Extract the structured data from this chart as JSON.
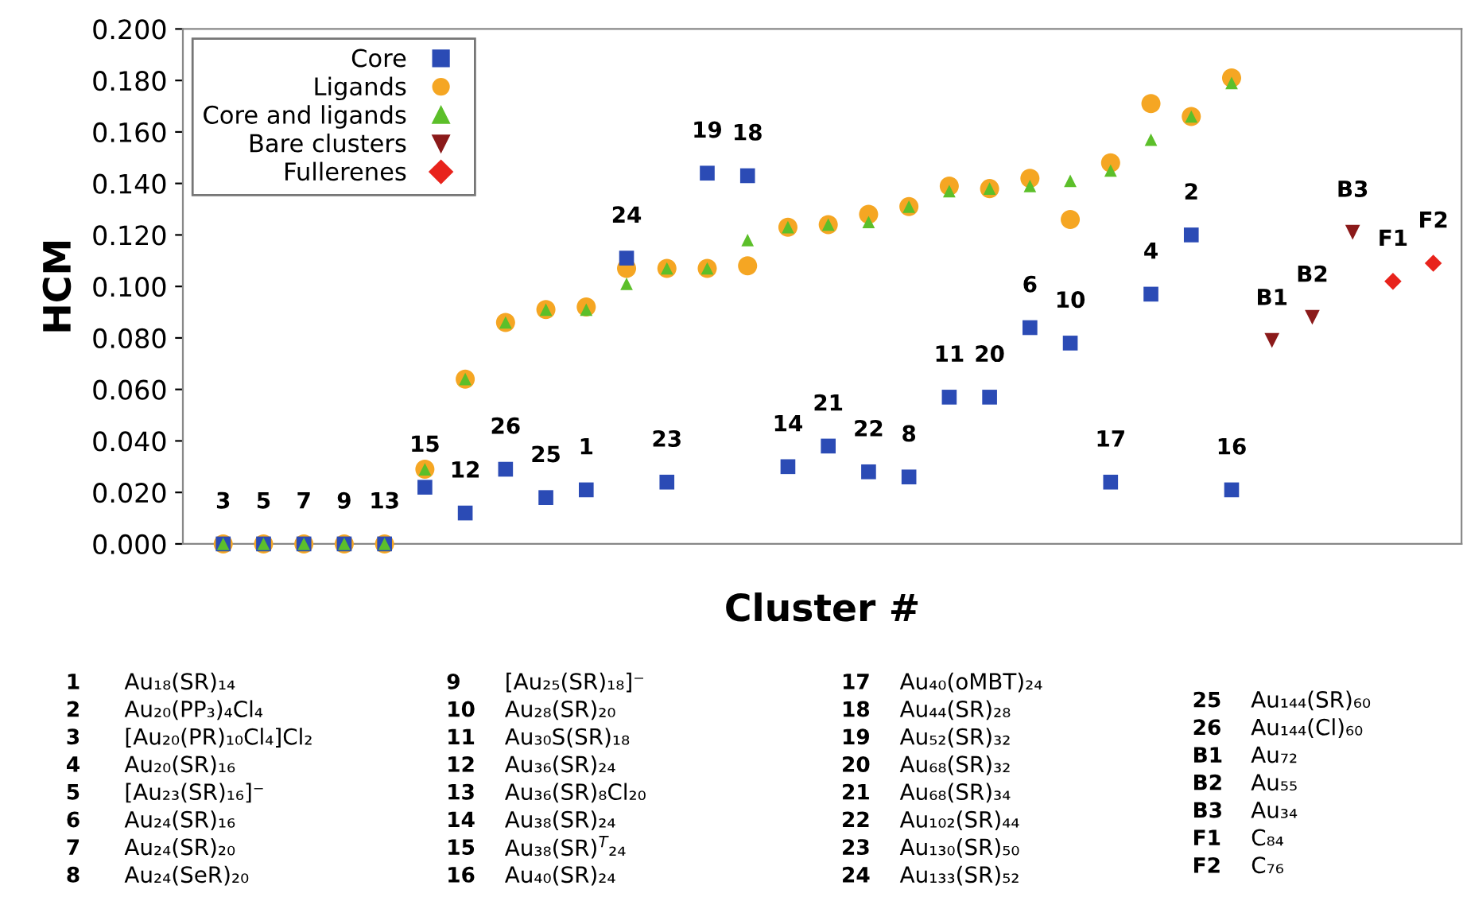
{
  "chart_data": {
    "type": "scatter",
    "xlabel": "Cluster #",
    "ylabel": "HCM",
    "categories": [
      "3",
      "5",
      "7",
      "9",
      "13",
      "15",
      "12",
      "26",
      "25",
      "1",
      "24",
      "23",
      "19",
      "18",
      "14",
      "21",
      "22",
      "8",
      "11",
      "20",
      "6",
      "10",
      "17",
      "4",
      "2",
      "16",
      "B1",
      "B2",
      "B3",
      "F1",
      "F2"
    ],
    "series": [
      {
        "name": "Core",
        "color": "#2b4bb5",
        "marker": "square",
        "values": [
          0,
          0,
          0,
          0,
          0,
          0.022,
          0.012,
          0.029,
          0.018,
          0.021,
          0.111,
          0.024,
          0.144,
          0.143,
          0.03,
          0.038,
          0.028,
          0.026,
          0.057,
          0.057,
          0.084,
          0.078,
          0.024,
          0.097,
          0.12,
          0.021,
          null,
          null,
          null,
          null,
          null
        ]
      },
      {
        "name": "Ligands",
        "color": "#f5a623",
        "marker": "circle",
        "values": [
          0,
          0,
          0,
          0,
          0,
          0.029,
          0.064,
          0.086,
          0.091,
          0.092,
          0.107,
          0.107,
          0.107,
          0.108,
          0.123,
          0.124,
          0.128,
          0.131,
          0.139,
          0.138,
          0.142,
          0.126,
          0.148,
          0.171,
          0.166,
          0.181,
          null,
          null,
          null,
          null,
          null
        ]
      },
      {
        "name": "Core and ligands",
        "color": "#5cbf2a",
        "marker": "triangle",
        "values": [
          0,
          0,
          0,
          0,
          0,
          0.029,
          0.064,
          0.086,
          0.091,
          0.091,
          0.101,
          0.107,
          0.107,
          0.118,
          0.123,
          0.124,
          0.125,
          0.131,
          0.137,
          0.138,
          0.139,
          0.141,
          0.145,
          0.157,
          0.166,
          0.179,
          null,
          null,
          null,
          null,
          null
        ]
      },
      {
        "name": "Bare clusters",
        "color": "#8b1a1a",
        "marker": "triangle_down",
        "values": [
          null,
          null,
          null,
          null,
          null,
          null,
          null,
          null,
          null,
          null,
          null,
          null,
          null,
          null,
          null,
          null,
          null,
          null,
          null,
          null,
          null,
          null,
          null,
          null,
          null,
          null,
          0.079,
          0.088,
          0.121,
          null,
          null
        ]
      },
      {
        "name": "Fullerenes",
        "color": "#e8231c",
        "marker": "diamond",
        "values": [
          null,
          null,
          null,
          null,
          null,
          null,
          null,
          null,
          null,
          null,
          null,
          null,
          null,
          null,
          null,
          null,
          null,
          null,
          null,
          null,
          null,
          null,
          null,
          null,
          null,
          null,
          null,
          null,
          null,
          0.102,
          0.109
        ]
      }
    ],
    "ylim": [
      0,
      0.2
    ],
    "yticks": [
      {
        "value": 0,
        "label": "0.000"
      },
      {
        "value": 0.02,
        "label": "0.020"
      },
      {
        "value": 0.04,
        "label": "0.040"
      },
      {
        "value": 0.06,
        "label": "0.060"
      },
      {
        "value": 0.08,
        "label": "0.080"
      },
      {
        "value": 0.1,
        "label": "0.100"
      },
      {
        "value": 0.12,
        "label": "0.120"
      },
      {
        "value": 0.14,
        "label": "0.140"
      },
      {
        "value": 0.16,
        "label": "0.160"
      },
      {
        "value": 0.18,
        "label": "0.180"
      },
      {
        "value": 0.2,
        "label": "0.200"
      }
    ],
    "tick_labels": "y",
    "grid": false,
    "legend": "top left",
    "annotations": [
      "1 Au₁₈(SR)₁₄",
      "2 Au₂₀(PP₃)₄Cl₄",
      "3 [Au₂₀(PR)₁₀Cl₄]Cl₂",
      "4 Au₂₀(SR)₁₆",
      "5 [Au₂₃(SR)₁₆]⁻",
      "6 Au₂₄(SR)₁₆",
      "7 Au₂₄(SR)₂₀",
      "8 Au₂₄(SeR)₂₀",
      "9 [Au₂₅(SR)₁₈]⁻",
      "10 Au₂₈(SR)₂₀",
      "11 Au₃₀S(SR)₁₈",
      "12 Au₃₆(SR)₂₄",
      "13 Au₃₆(SR)₈Cl₂₀",
      "14 Au₃₈(SR)₂₄",
      "15 Au₃₈(SR)$^{T}$₂₄",
      "16 Au₄₀(SR)₂₄",
      "17 Au₄₀(oMBT)₂₄",
      "18 Au₄₄(SR)₂₈",
      "19 Au₅₂(SR)₃₂",
      "20 Au₆₈(SR)₃₂",
      "21 Au₆₈(SR)₃₄",
      "22 Au₁₀₂(SR)₄₄",
      "23 Au₁₃₀(SR)₅₀",
      "24 Au₁₃₃(SR)₅₂",
      "25 Au₁₄₄(SR)₆₀",
      "26 Au₁₄₄(Cl)₆₀",
      "B1 Au₇₂",
      "B2 Au₅₅",
      "B3 Au₃₄",
      "F1 C₈₄",
      "F2 C₇₆"
    ]
  }
}
